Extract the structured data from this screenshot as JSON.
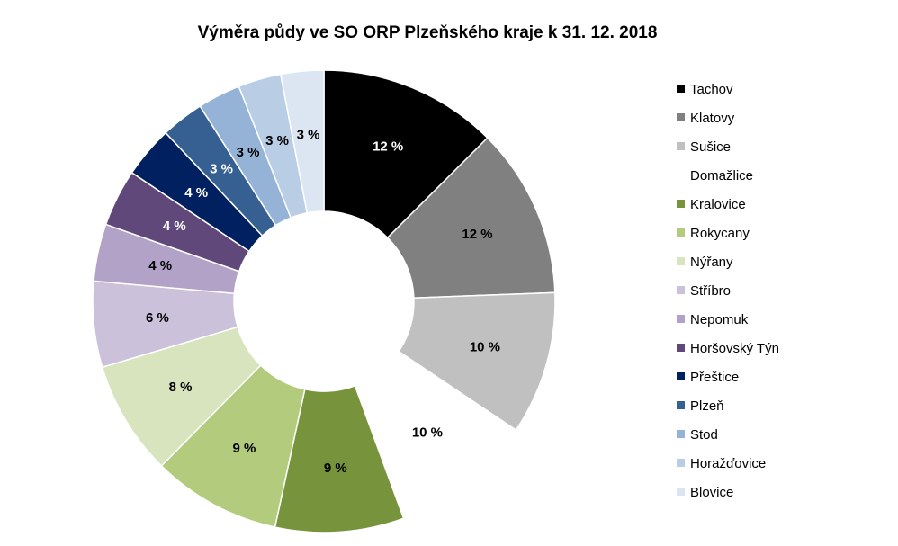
{
  "chart_data": {
    "type": "pie",
    "variant": "donut",
    "title": "Výměra půdy ve SO ORP Plzeňského kraje k 31. 12. 2018",
    "legend_position": "right",
    "value_format": "{v} %",
    "categories": [
      "Tachov",
      "Klatovy",
      "Sušice",
      "Domažlice",
      "Kralovice",
      "Rokycany",
      "Nýřany",
      "Stříbro",
      "Nepomuk",
      "Horšovský Týn",
      "Přeštice",
      "Plzeň",
      "Stod",
      "Horažďovice",
      "Blovice"
    ],
    "values": [
      12.5,
      11.9,
      10.0,
      10.0,
      9.0,
      9.0,
      8.0,
      6.0,
      4.0,
      4.0,
      3.6,
      3.0,
      3.0,
      3.0,
      3.0
    ],
    "labels": [
      "12 %",
      "12 %",
      "10 %",
      "10 %",
      "9 %",
      "9 %",
      "8 %",
      "6 %",
      "4 %",
      "4 %",
      "4 %",
      "3 %",
      "3 %",
      "3 %",
      "3 %"
    ],
    "colors": [
      "#000000",
      "#808080",
      "#c0c0c0",
      "#ffffff",
      "#77933c",
      "#b3cb7d",
      "#d7e4bd",
      "#ccc1da",
      "#b3a2c7",
      "#60497a",
      "#002060",
      "#366092",
      "#95b3d7",
      "#b9cde5",
      "#dce6f2"
    ],
    "label_colors": [
      "#ffffff",
      "#000000",
      "#000000",
      "#000000",
      "#000000",
      "#000000",
      "#000000",
      "#000000",
      "#000000",
      "#ffffff",
      "#ffffff",
      "#ffffff",
      "#000000",
      "#000000",
      "#000000"
    ]
  }
}
